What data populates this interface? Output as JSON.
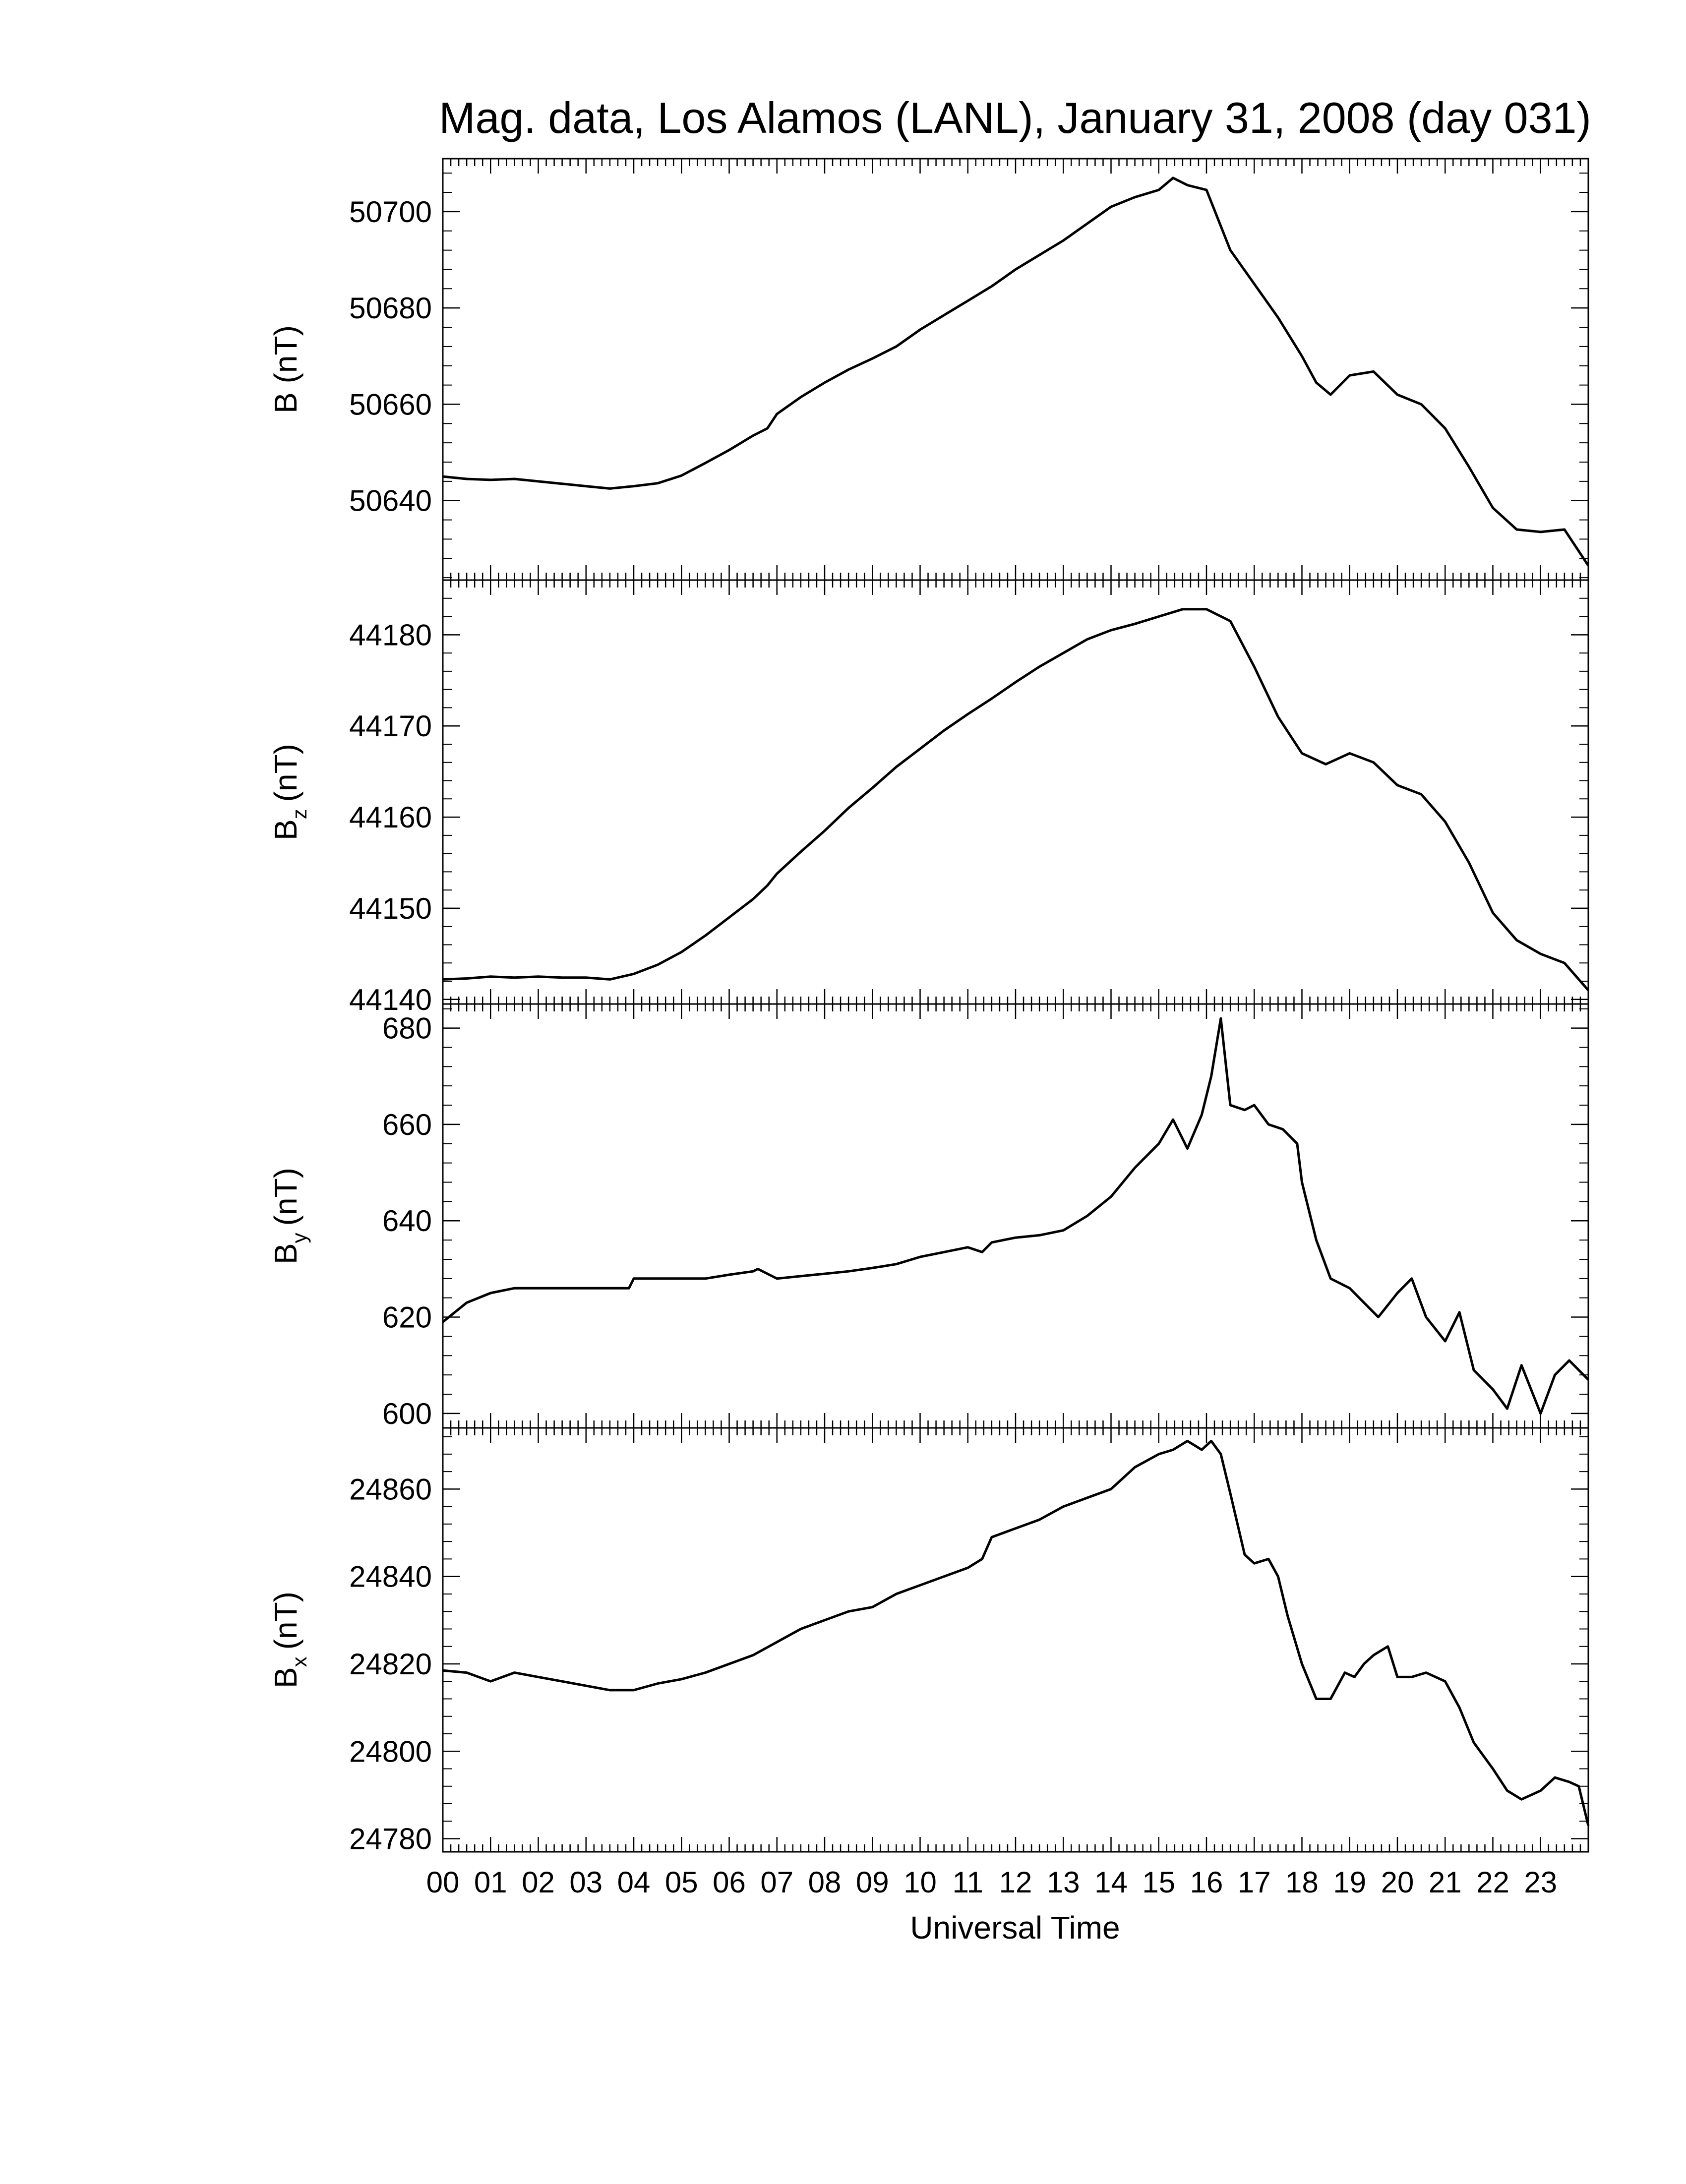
{
  "figure": {
    "title": "Mag. data, Los Alamos (LANL), January 31, 2008 (day 031)",
    "xlabel": "Universal Time"
  },
  "chart_data": [
    {
      "type": "line",
      "ylabel": "B (nT)",
      "xlim": [
        0,
        24
      ],
      "ylim": [
        50623.5,
        50711
      ],
      "yticks": [
        50640,
        50660,
        50680,
        50700
      ],
      "ytick_labels": [
        "50640",
        "50660",
        "50680",
        "50700"
      ],
      "x_ticks": [
        "00",
        "01",
        "02",
        "03",
        "04",
        "05",
        "06",
        "07",
        "08",
        "09",
        "10",
        "11",
        "12",
        "13",
        "14",
        "15",
        "16",
        "17",
        "18",
        "19",
        "20",
        "21",
        "22",
        "23"
      ],
      "series": [
        {
          "x": [
            0,
            0.5,
            1,
            1.5,
            2,
            2.5,
            3,
            3.5,
            4,
            4.5,
            5,
            5.5,
            6,
            6.5,
            6.8,
            7,
            7.5,
            8,
            8.5,
            9,
            9.5,
            10,
            10.5,
            11,
            11.5,
            12,
            12.5,
            13,
            13.5,
            14,
            14.5,
            15,
            15.3,
            15.6,
            16,
            16.5,
            17,
            17.5,
            18,
            18.3,
            18.6,
            19,
            19.5,
            20,
            20.5,
            21,
            21.5,
            22,
            22.5,
            23,
            23.5,
            24
          ],
          "y": [
            50645,
            50644.5,
            50644.3,
            50644.5,
            50644,
            50643.5,
            50643,
            50642.5,
            50643,
            50643.6,
            50645.2,
            50647.8,
            50650.5,
            50653.5,
            50655,
            50658,
            50661.5,
            50664.5,
            50667.2,
            50669.5,
            50672,
            50675.5,
            50678.5,
            50681.5,
            50684.5,
            50688,
            50691,
            50694,
            50697.5,
            50701,
            50703,
            50704.5,
            50707,
            50705.5,
            50704.5,
            50692,
            50685,
            50678,
            50670,
            50664.5,
            50662,
            50666,
            50666.8,
            50662,
            50660,
            50655,
            50647,
            50638.5,
            50634,
            50633.5,
            50634,
            50626.5
          ]
        }
      ]
    },
    {
      "type": "line",
      "ylabel": "B",
      "ylabel_sub": "z",
      "ylabel_unit": "(nT)",
      "xlim": [
        0,
        24
      ],
      "ylim": [
        44139.5,
        44186
      ],
      "yticks": [
        44140,
        44150,
        44160,
        44170,
        44180
      ],
      "ytick_labels": [
        "44140",
        "44150",
        "44160",
        "44170",
        "44180"
      ],
      "x_ticks": [
        "00",
        "01",
        "02",
        "03",
        "04",
        "05",
        "06",
        "07",
        "08",
        "09",
        "10",
        "11",
        "12",
        "13",
        "14",
        "15",
        "16",
        "17",
        "18",
        "19",
        "20",
        "21",
        "22",
        "23"
      ],
      "series": [
        {
          "x": [
            0,
            0.5,
            1,
            1.5,
            2,
            2.5,
            3,
            3.5,
            4,
            4.5,
            5,
            5.5,
            6,
            6.5,
            6.8,
            7,
            7.5,
            8,
            8.5,
            9,
            9.5,
            10,
            10.5,
            11,
            11.5,
            12,
            12.5,
            13,
            13.5,
            14,
            14.5,
            15,
            15.5,
            16,
            16.5,
            17,
            17.5,
            18,
            18.5,
            19,
            19.5,
            20,
            20.5,
            21,
            21.5,
            22,
            22.5,
            23,
            23.5,
            24
          ],
          "y": [
            44142.2,
            44142.3,
            44142.5,
            44142.4,
            44142.5,
            44142.4,
            44142.4,
            44142.2,
            44142.8,
            44143.8,
            44145.2,
            44147,
            44149,
            44151,
            44152.5,
            44153.8,
            44156.2,
            44158.5,
            44161,
            44163.2,
            44165.5,
            44167.5,
            44169.5,
            44171.3,
            44173,
            44174.8,
            44176.5,
            44178,
            44179.5,
            44180.5,
            44181.2,
            44182,
            44182.8,
            44182.8,
            44181.5,
            44176.5,
            44171,
            44167,
            44165.8,
            44167,
            44166,
            44163.5,
            44162.5,
            44159.5,
            44155,
            44149.5,
            44146.5,
            44145,
            44144,
            44141
          ]
        }
      ]
    },
    {
      "type": "line",
      "ylabel": "B",
      "ylabel_sub": "y",
      "ylabel_unit": "(nT)",
      "xlim": [
        0,
        24
      ],
      "ylim": [
        597,
        685
      ],
      "yticks": [
        600,
        620,
        640,
        660,
        680
      ],
      "ytick_labels": [
        "600",
        "620",
        "640",
        "660",
        "680"
      ],
      "x_ticks": [
        "00",
        "01",
        "02",
        "03",
        "04",
        "05",
        "06",
        "07",
        "08",
        "09",
        "10",
        "11",
        "12",
        "13",
        "14",
        "15",
        "16",
        "17",
        "18",
        "19",
        "20",
        "21",
        "22",
        "23"
      ],
      "series": [
        {
          "x": [
            0,
            0.5,
            1,
            1.5,
            2,
            2.5,
            3,
            3.5,
            3.9,
            4,
            4.5,
            5,
            5.5,
            6,
            6.5,
            6.6,
            7,
            7.5,
            8,
            8.5,
            9,
            9.5,
            10,
            10.5,
            11,
            11.3,
            11.5,
            12,
            12.5,
            13,
            13.5,
            14,
            14.5,
            15,
            15.3,
            15.6,
            15.9,
            16.1,
            16.3,
            16.5,
            16.8,
            17,
            17.3,
            17.6,
            17.9,
            18,
            18.3,
            18.6,
            19,
            19.3,
            19.6,
            20,
            20.3,
            20.6,
            21,
            21.3,
            21.6,
            22,
            22.3,
            22.6,
            23,
            23.3,
            23.6,
            24
          ],
          "y": [
            619,
            623,
            625,
            626,
            626,
            626,
            626,
            626,
            626,
            628,
            628,
            628,
            628,
            628.8,
            629.5,
            630,
            628,
            628.5,
            629,
            629.5,
            630.2,
            631,
            632.5,
            633.5,
            634.5,
            633.5,
            635.5,
            636.5,
            637,
            638,
            641,
            645,
            651,
            656,
            661,
            655,
            662,
            670,
            682,
            664,
            663,
            664,
            660,
            659,
            656,
            648,
            636,
            628,
            626,
            623,
            620,
            625,
            628,
            620,
            615,
            621,
            609,
            605,
            601,
            610,
            600,
            608,
            611,
            607
          ]
        }
      ]
    },
    {
      "type": "line",
      "ylabel": "B",
      "ylabel_sub": "x",
      "ylabel_unit": "(nT)",
      "xlim": [
        0,
        24
      ],
      "ylim": [
        24777,
        24874
      ],
      "yticks": [
        24780,
        24800,
        24820,
        24840,
        24860
      ],
      "ytick_labels": [
        "24780",
        "24800",
        "24820",
        "24840",
        "24860"
      ],
      "x_ticks": [
        "00",
        "01",
        "02",
        "03",
        "04",
        "05",
        "06",
        "07",
        "08",
        "09",
        "10",
        "11",
        "12",
        "13",
        "14",
        "15",
        "16",
        "17",
        "18",
        "19",
        "20",
        "21",
        "22",
        "23"
      ],
      "series": [
        {
          "x": [
            0,
            0.5,
            1,
            1.5,
            2,
            2.5,
            3,
            3.5,
            4,
            4.5,
            5,
            5.5,
            6,
            6.5,
            7,
            7.5,
            8,
            8.5,
            9,
            9.5,
            10,
            10.5,
            11,
            11.3,
            11.5,
            12,
            12.5,
            13,
            13.5,
            14,
            14.5,
            15,
            15.3,
            15.6,
            15.9,
            16.1,
            16.3,
            16.5,
            16.8,
            17,
            17.3,
            17.5,
            17.7,
            18,
            18.3,
            18.6,
            18.9,
            19.1,
            19.3,
            19.5,
            19.8,
            20,
            20.3,
            20.6,
            21,
            21.3,
            21.6,
            22,
            22.3,
            22.6,
            23,
            23.3,
            23.6,
            23.8,
            24
          ],
          "y": [
            24818.5,
            24818,
            24816,
            24818,
            24817,
            24816,
            24815,
            24814,
            24814,
            24815.5,
            24816.5,
            24818,
            24820,
            24822,
            24825,
            24828,
            24830,
            24832,
            24833,
            24836,
            24838,
            24840,
            24842,
            24844,
            24849,
            24851,
            24853,
            24856,
            24858,
            24860,
            24865,
            24868,
            24869,
            24871,
            24869,
            24871,
            24868,
            24859,
            24845,
            24843,
            24844,
            24840,
            24831,
            24820,
            24812,
            24812,
            24818,
            24817,
            24820,
            24822,
            24824,
            24817,
            24817,
            24818,
            24816,
            24810,
            24802,
            24796,
            24791,
            24789,
            24791,
            24794,
            24793,
            24792,
            24783
          ]
        }
      ]
    }
  ]
}
